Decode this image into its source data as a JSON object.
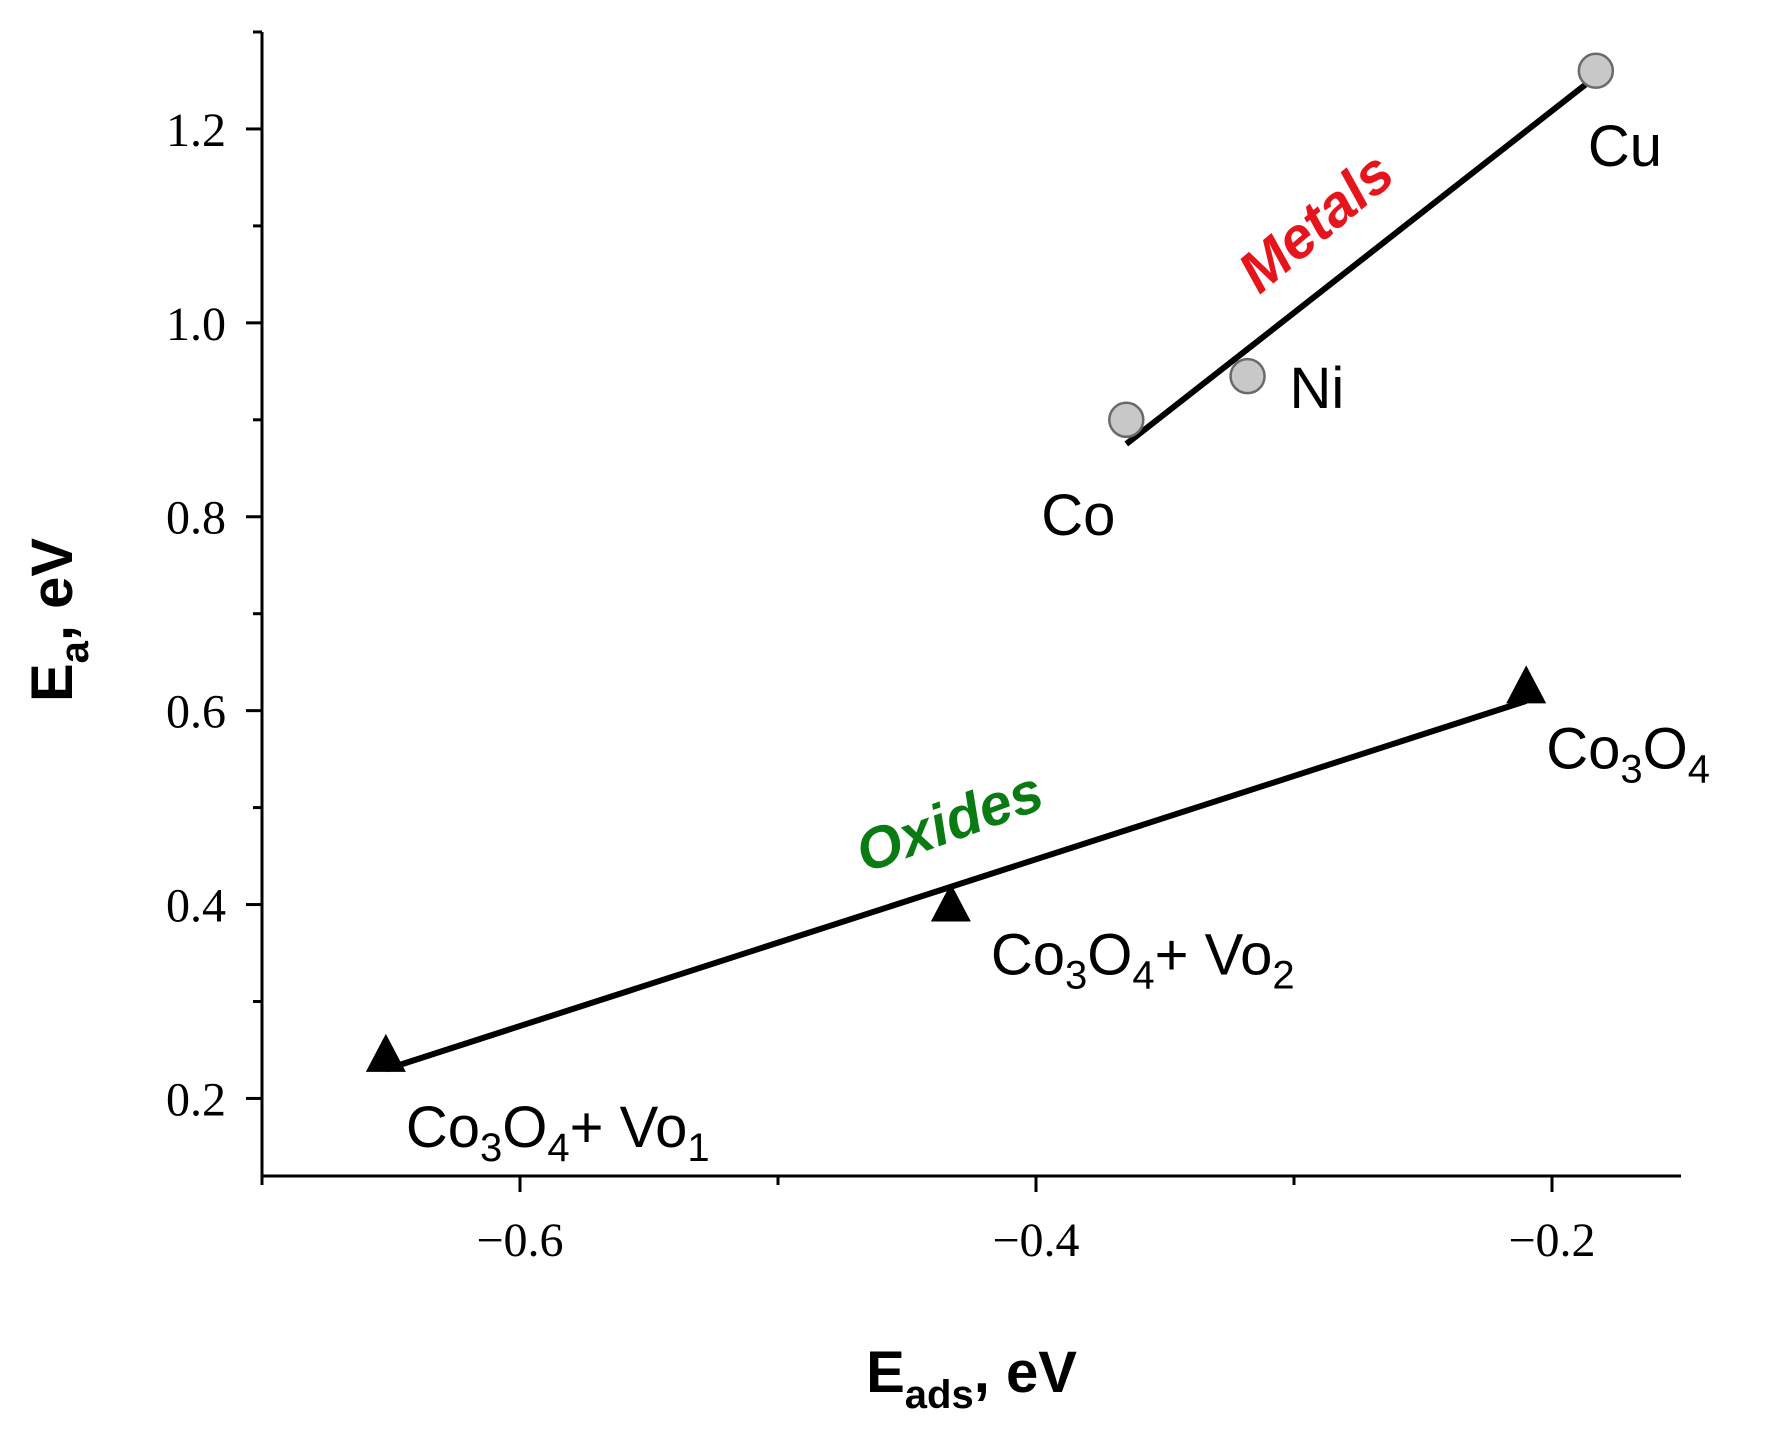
{
  "chart_data": {
    "type": "scatter",
    "xlim": [
      -0.7,
      -0.15
    ],
    "ylim": [
      0.12,
      1.3
    ],
    "x_ticks": [
      -0.6,
      -0.4,
      -0.2
    ],
    "x_tick_labels": [
      "−0.6",
      "−0.4",
      "−0.2"
    ],
    "y_ticks": [
      0.2,
      0.4,
      0.6,
      0.8,
      1.0,
      1.2
    ],
    "y_tick_labels": [
      "0.2",
      "0.4",
      "0.6",
      "0.8",
      "1.0",
      "1.2"
    ],
    "xlabel": {
      "main": "E",
      "sub": "ads",
      "rest": ", eV"
    },
    "ylabel": {
      "main": "E",
      "sub": "a",
      "rest": ", eV"
    },
    "grid": false,
    "series": [
      {
        "name": "Metals",
        "label_color": "#e8141c",
        "marker": "circle",
        "marker_color": "#c8c8c8",
        "points": [
          {
            "x": -0.365,
            "y": 0.9,
            "label": "Co",
            "label_sub": "",
            "label_rest": ""
          },
          {
            "x": -0.318,
            "y": 0.945,
            "label": "Ni",
            "label_sub": "",
            "label_rest": ""
          },
          {
            "x": -0.183,
            "y": 1.26,
            "label": "Cu",
            "label_sub": "",
            "label_rest": ""
          }
        ],
        "fit": [
          [
            -0.365,
            0.875
          ],
          [
            -0.185,
            1.25
          ]
        ]
      },
      {
        "name": "Oxides",
        "label_color": "#0a7a12",
        "marker": "triangle",
        "marker_color": "#000000",
        "points": [
          {
            "x": -0.652,
            "y": 0.245,
            "label": "Co",
            "label_sub": "3",
            "label_rest": "O",
            "label_sub2": "4",
            "label_tail": "+ Vo",
            "label_sub3": "1"
          },
          {
            "x": -0.433,
            "y": 0.4,
            "label": "Co",
            "label_sub": "3",
            "label_rest": "O",
            "label_sub2": "4",
            "label_tail": "+ Vo",
            "label_sub3": "2"
          },
          {
            "x": -0.21,
            "y": 0.625,
            "label": "Co",
            "label_sub": "3",
            "label_rest": "O",
            "label_sub2": "4",
            "label_tail": "",
            "label_sub3": ""
          }
        ],
        "fit": [
          [
            -0.652,
            0.23
          ],
          [
            -0.21,
            0.61
          ]
        ]
      }
    ]
  }
}
